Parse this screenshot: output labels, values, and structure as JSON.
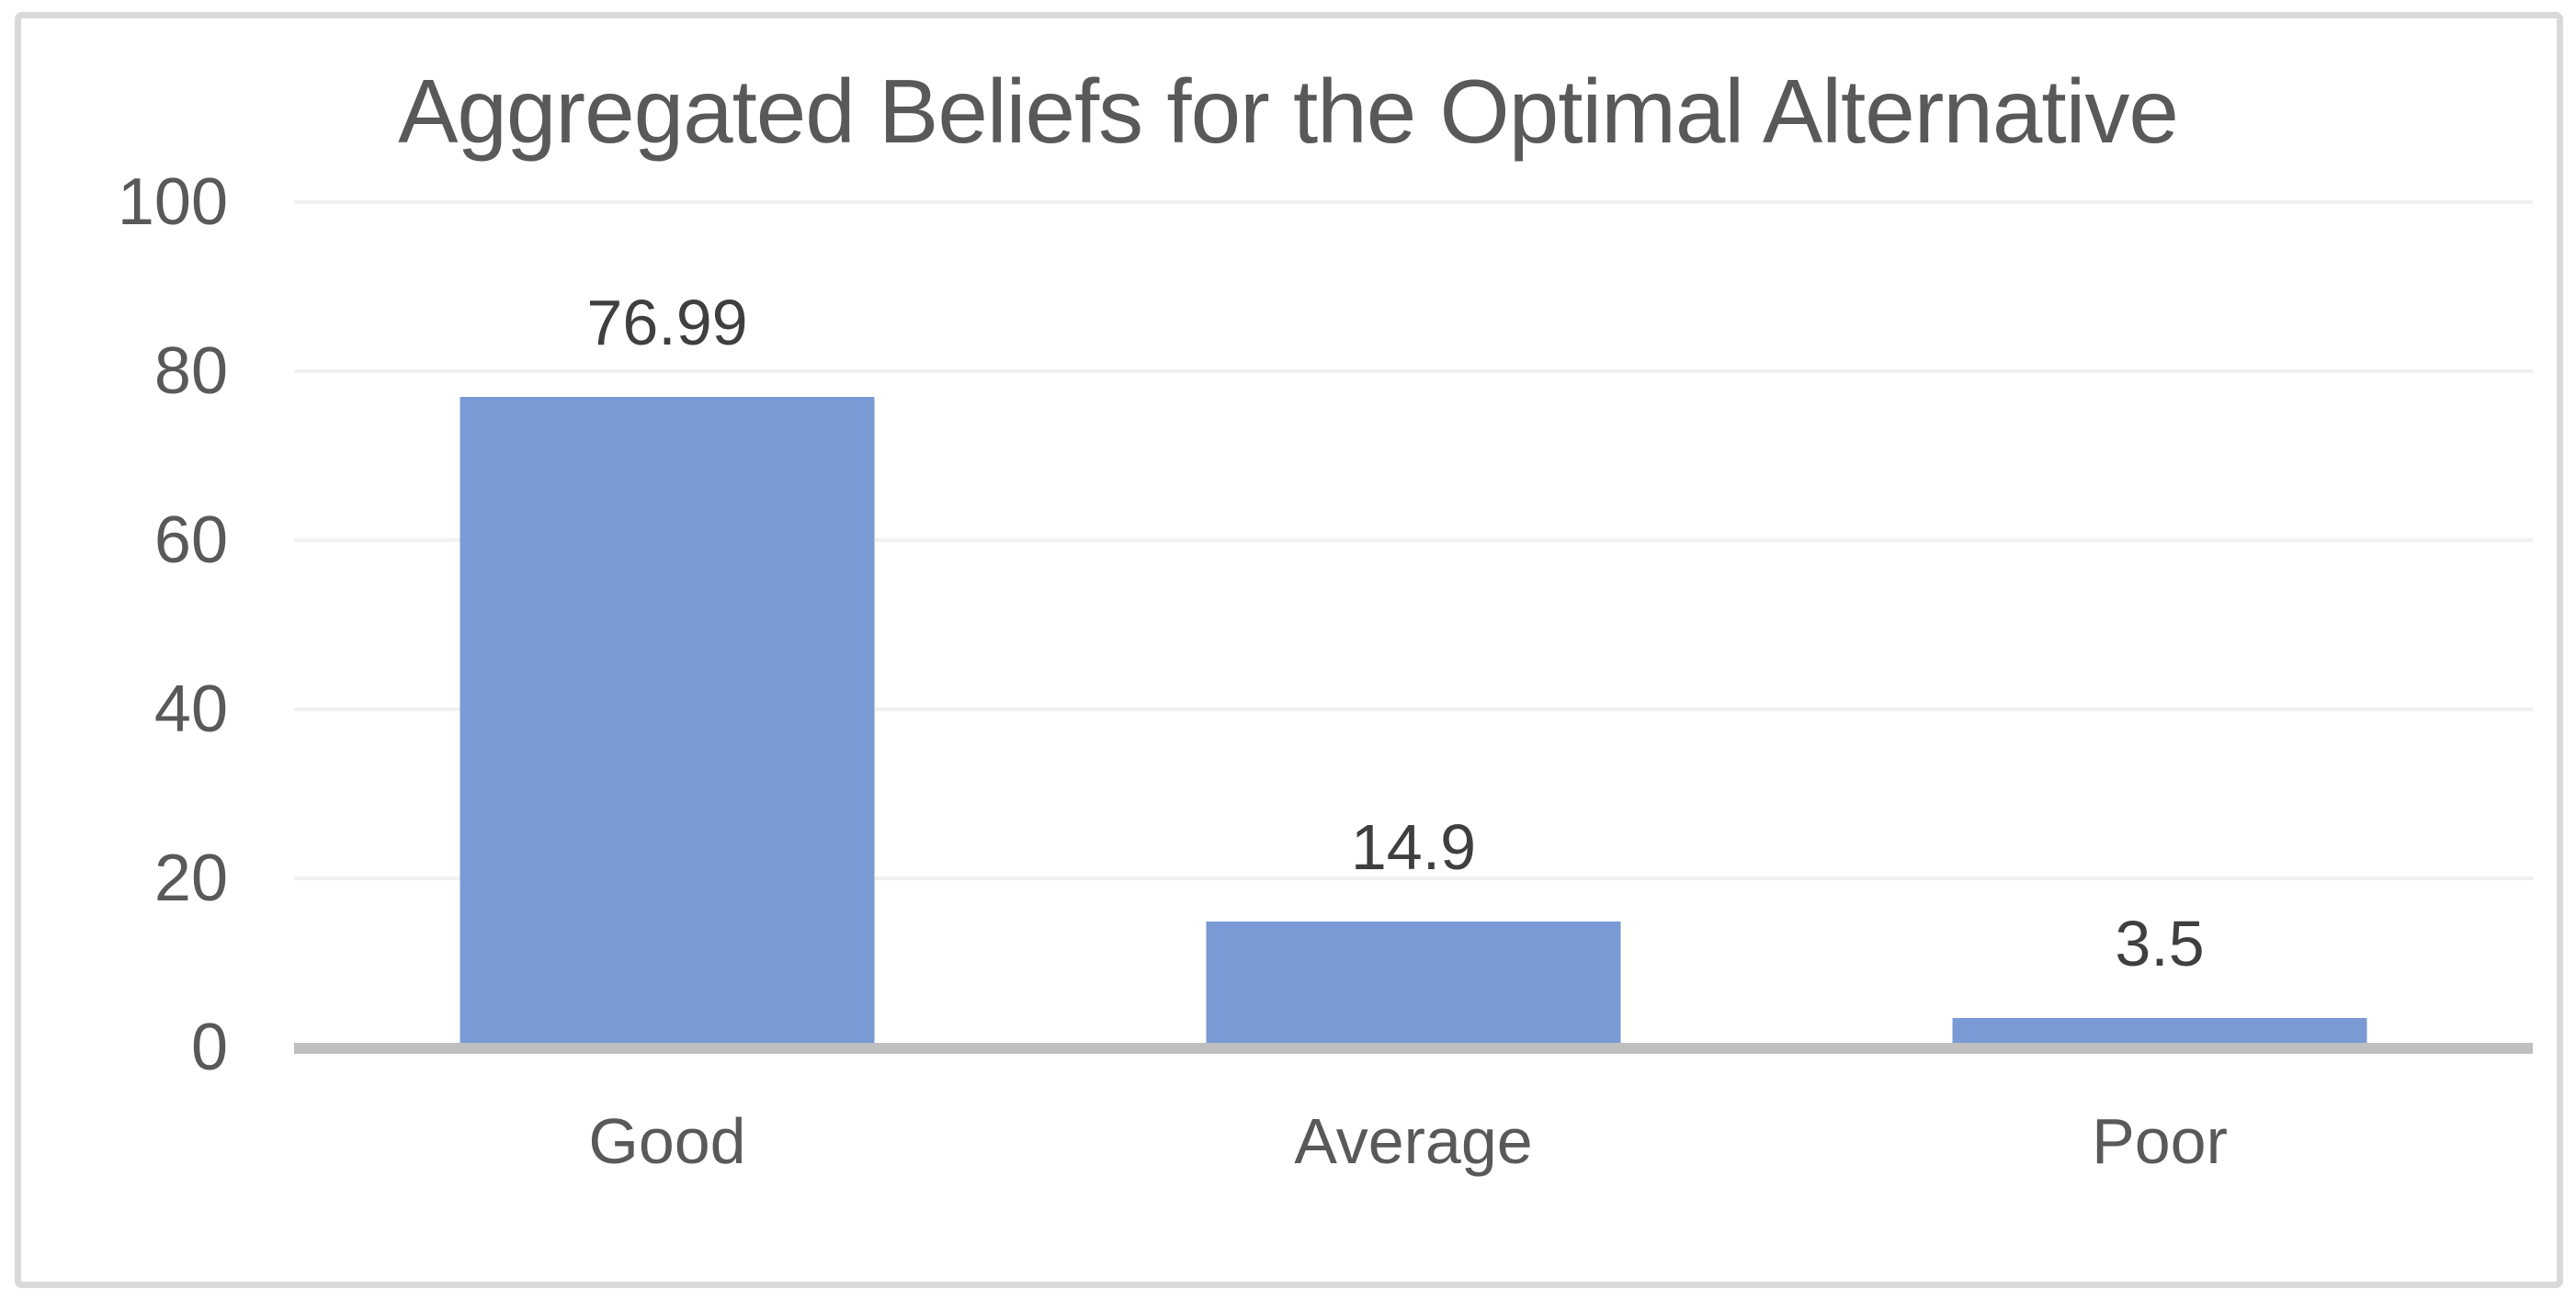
{
  "chart_data": {
    "type": "bar",
    "title": "Aggregated Beliefs for the Optimal Alternative",
    "categories": [
      "Good",
      "Average",
      "Poor"
    ],
    "values": [
      76.99,
      14.9,
      3.5
    ],
    "value_labels": [
      "76.99",
      "14.9",
      "3.5"
    ],
    "xlabel": "",
    "ylabel": "",
    "ylim": [
      0,
      100
    ],
    "yticks": [
      0,
      20,
      40,
      60,
      80,
      100
    ],
    "grid": "horizontal-light",
    "legend": "none",
    "colors": {
      "bar_fill": "#7A9AD5",
      "title_text": "#595959",
      "axis_text": "#595959",
      "value_label_text": "#3F3F3F",
      "gridline": "#F1F1F1",
      "axis_line": "#BFBFBF",
      "frame_border": "#D9D9D9",
      "background": "#FFFFFF"
    }
  }
}
